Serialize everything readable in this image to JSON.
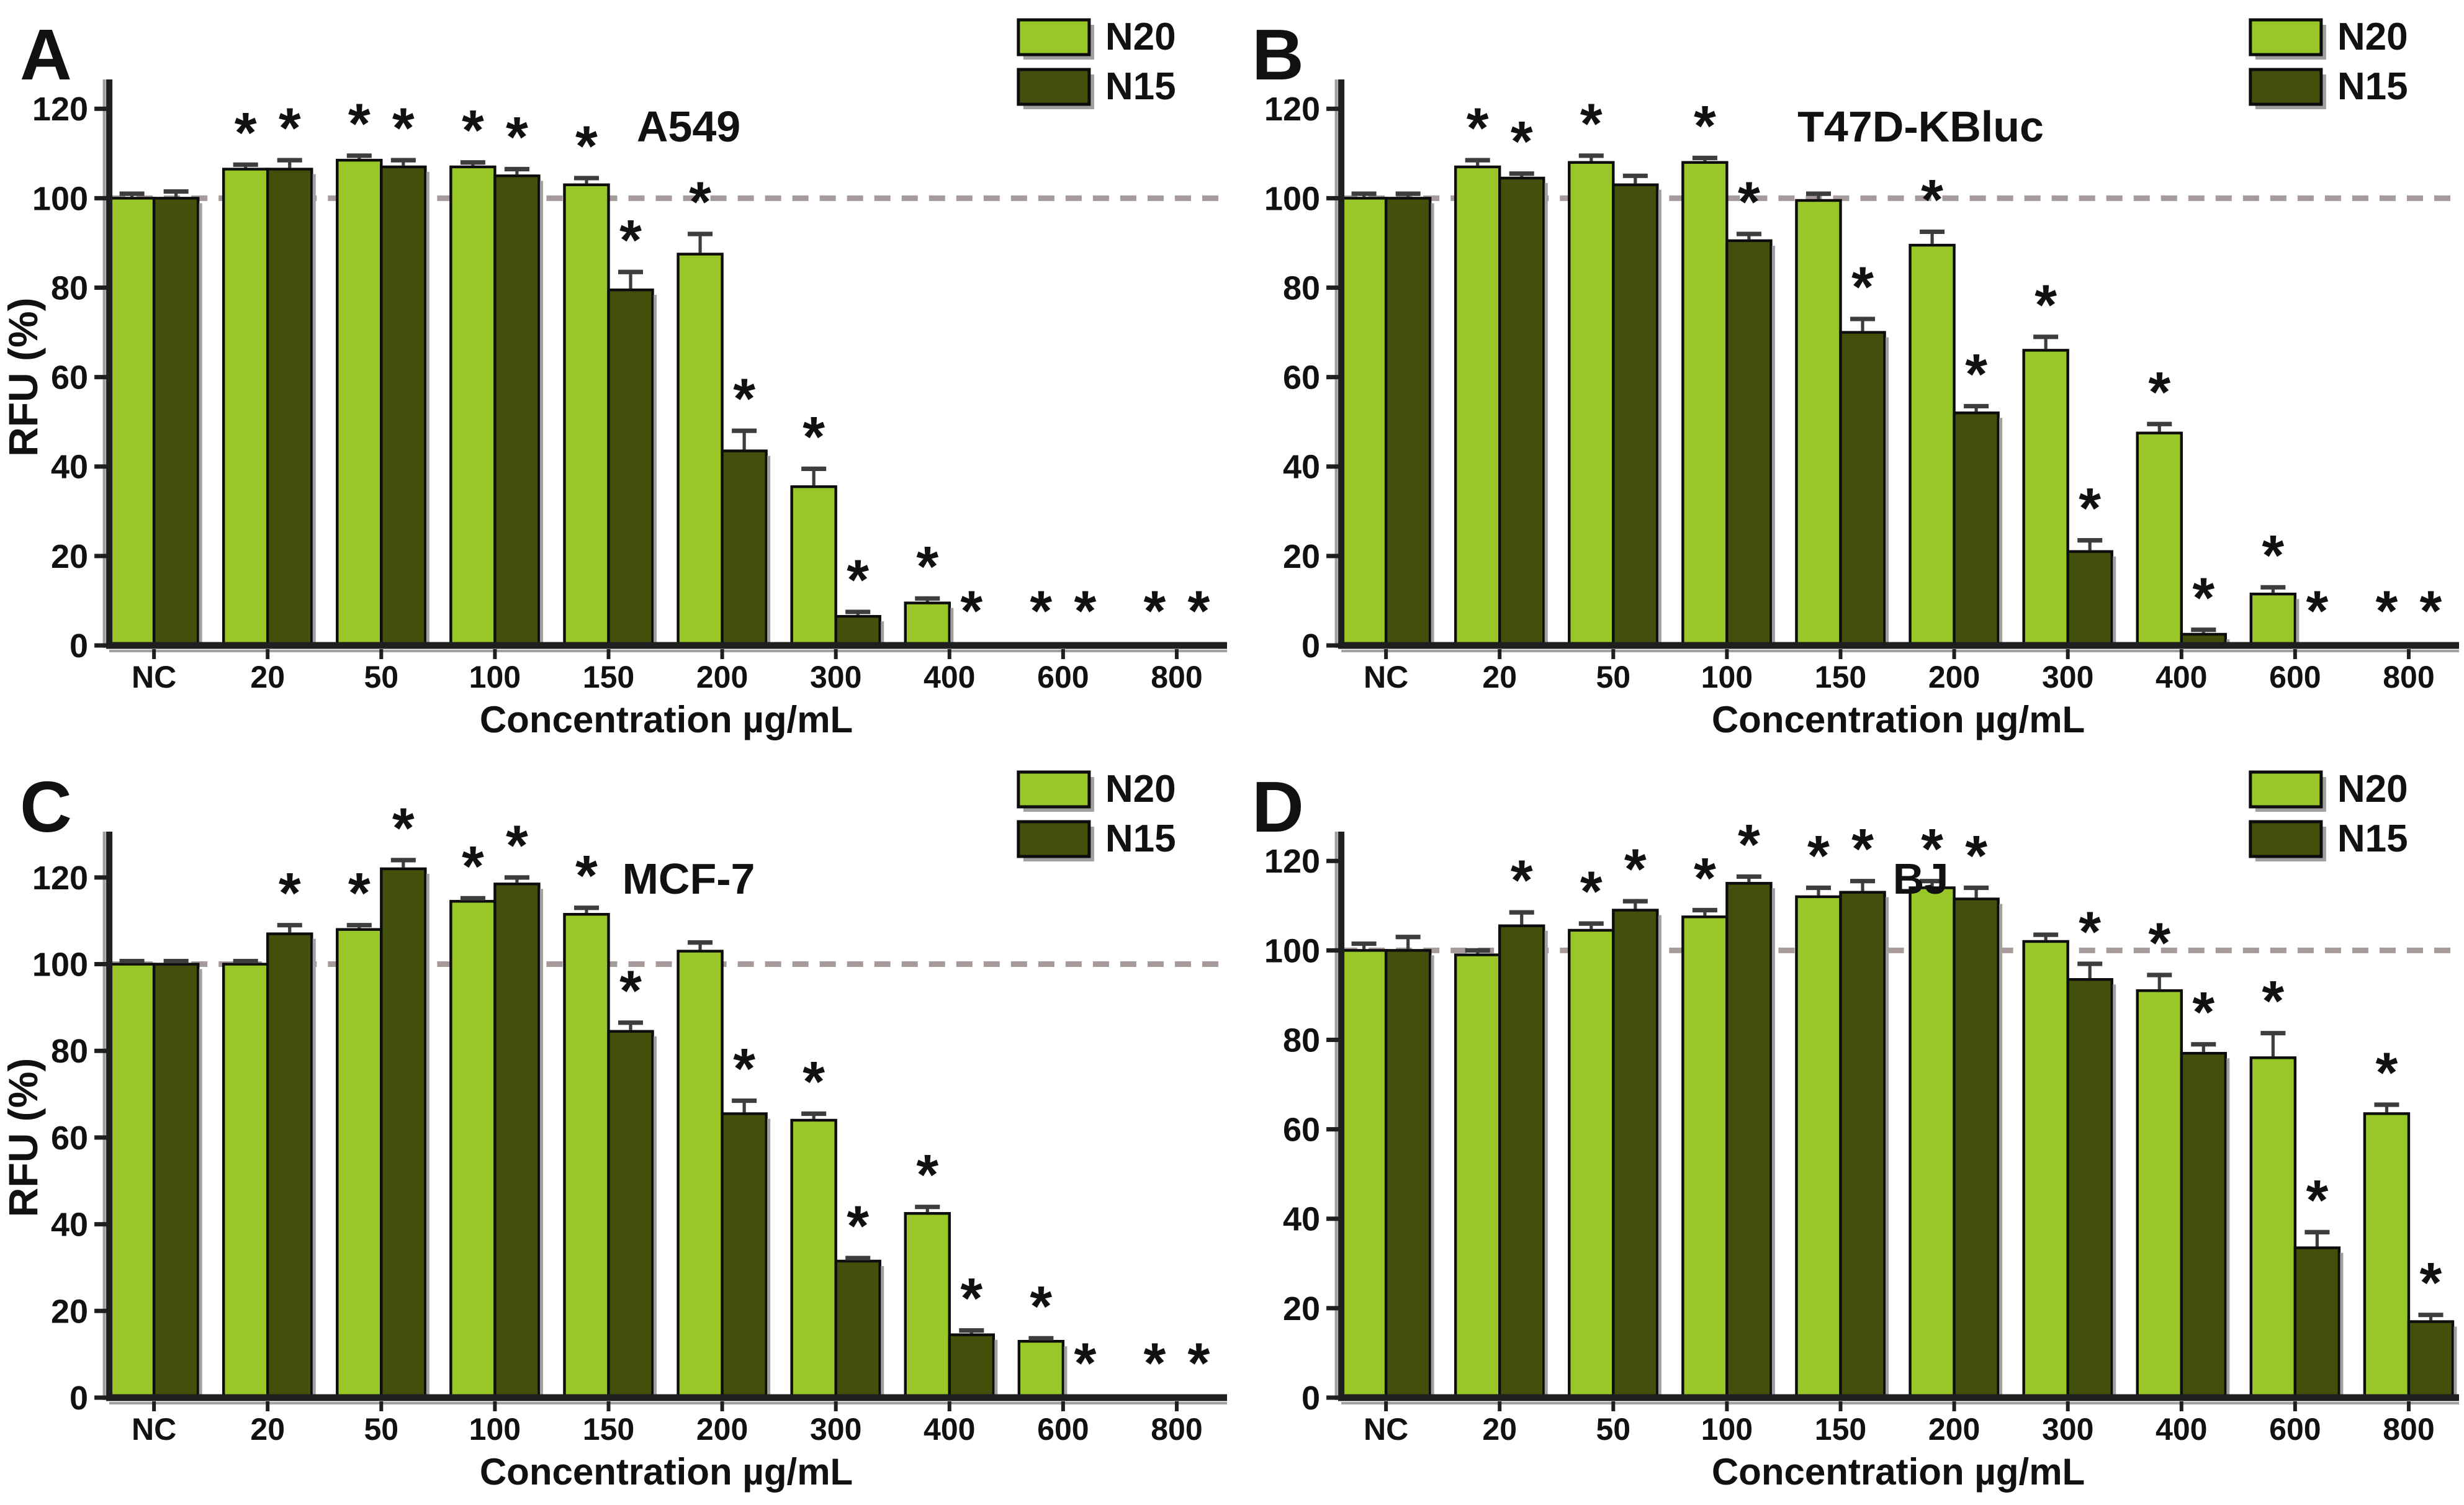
{
  "figure": {
    "x_axis_title": "Concentration µg/mL",
    "y_axis_title": "RFU (%)",
    "categories": [
      "NC",
      "20",
      "50",
      "100",
      "150",
      "200",
      "300",
      "400",
      "600",
      "800"
    ],
    "yticks": [
      0,
      20,
      40,
      60,
      80,
      100,
      120
    ],
    "ylim": [
      0,
      120
    ],
    "ref_line_value": 100,
    "significance_marker": "*",
    "legend": [
      "N20",
      "N15"
    ],
    "colors": {
      "N20": "#98C727",
      "N15": "#42500B",
      "bar_outline": "#0d0d0d",
      "error_bar": "#3d3d3d",
      "ref_line": "#A79A9A",
      "axis": "#1f1f1f",
      "axis_shadow": "#a0a0a0",
      "text": "#111111"
    }
  },
  "chart_data": [
    {
      "type": "bar",
      "panel": "A",
      "title": "A549",
      "show_y_title": true,
      "xlabel": "Concentration µg/mL",
      "ylabel": "RFU (%)",
      "categories": [
        "NC",
        "20",
        "50",
        "100",
        "150",
        "200",
        "300",
        "400",
        "600",
        "800"
      ],
      "series": [
        {
          "name": "N20",
          "values": [
            100,
            106.5,
            108.5,
            107,
            103,
            87.5,
            35.5,
            9.5,
            0,
            0
          ],
          "errors": [
            1,
            1,
            1,
            1,
            1.5,
            4.5,
            4,
            1,
            0,
            0
          ],
          "significant": [
            0,
            1,
            1,
            1,
            1,
            1,
            1,
            1,
            1,
            1
          ]
        },
        {
          "name": "N15",
          "values": [
            100,
            106.5,
            107,
            105,
            79.5,
            43.5,
            6.5,
            0,
            0,
            0
          ],
          "errors": [
            1.5,
            2,
            1.5,
            1.5,
            4,
            4.5,
            1,
            0,
            0,
            0
          ],
          "significant": [
            0,
            1,
            1,
            1,
            1,
            1,
            1,
            1,
            1,
            1
          ]
        }
      ]
    },
    {
      "type": "bar",
      "panel": "B",
      "title": "T47D-KBluc",
      "show_y_title": false,
      "xlabel": "Concentration µg/mL",
      "ylabel": "",
      "categories": [
        "NC",
        "20",
        "50",
        "100",
        "150",
        "200",
        "300",
        "400",
        "600",
        "800"
      ],
      "series": [
        {
          "name": "N20",
          "values": [
            100,
            107,
            108,
            108,
            99.5,
            89.5,
            66,
            47.5,
            11.5,
            0
          ],
          "errors": [
            1,
            1.5,
            1.5,
            1,
            1.5,
            3,
            3,
            2,
            1.5,
            0
          ],
          "significant": [
            0,
            1,
            1,
            1,
            0,
            1,
            1,
            1,
            1,
            1
          ]
        },
        {
          "name": "N15",
          "values": [
            100,
            104.5,
            103,
            90.5,
            70,
            52,
            21,
            2.5,
            0,
            0
          ],
          "errors": [
            1,
            1,
            2,
            1.5,
            3,
            1.5,
            2.5,
            1,
            0,
            0
          ],
          "significant": [
            0,
            1,
            0,
            1,
            1,
            1,
            1,
            1,
            1,
            1
          ]
        }
      ]
    },
    {
      "type": "bar",
      "panel": "C",
      "title": "MCF-7",
      "show_y_title": true,
      "xlabel": "Concentration µg/mL",
      "ylabel": "RFU (%)",
      "categories": [
        "NC",
        "20",
        "50",
        "100",
        "150",
        "200",
        "300",
        "400",
        "600",
        "800"
      ],
      "series": [
        {
          "name": "N20",
          "values": [
            100,
            100,
            108,
            114.5,
            111.5,
            103,
            64,
            42.5,
            13,
            0
          ],
          "errors": [
            0.7,
            0.7,
            1,
            0.7,
            1.5,
            2,
            1.5,
            1.5,
            0.7,
            0
          ],
          "significant": [
            0,
            0,
            1,
            1,
            1,
            0,
            1,
            1,
            1,
            1
          ]
        },
        {
          "name": "N15",
          "values": [
            100,
            107,
            122,
            118.5,
            84.5,
            65.5,
            31.5,
            14.5,
            0,
            0
          ],
          "errors": [
            0.7,
            2,
            2,
            1.5,
            2,
            3,
            0.7,
            1,
            0,
            0
          ],
          "significant": [
            0,
            1,
            1,
            1,
            1,
            1,
            1,
            1,
            1,
            1
          ]
        }
      ]
    },
    {
      "type": "bar",
      "panel": "D",
      "title": "BJ",
      "show_y_title": false,
      "xlabel": "Concentration µg/mL",
      "ylabel": "",
      "categories": [
        "NC",
        "20",
        "50",
        "100",
        "150",
        "200",
        "300",
        "400",
        "600",
        "800"
      ],
      "series": [
        {
          "name": "N20",
          "values": [
            100,
            99,
            104.5,
            107.5,
            112,
            114,
            102,
            91,
            76,
            63.5
          ],
          "errors": [
            1.5,
            1,
            1.5,
            1.5,
            2,
            1.5,
            1.5,
            3.5,
            5.5,
            2
          ],
          "significant": [
            0,
            0,
            1,
            1,
            1,
            1,
            0,
            1,
            1,
            1
          ]
        },
        {
          "name": "N15",
          "values": [
            100,
            105.5,
            109,
            115,
            113,
            111.5,
            93.5,
            77,
            33.5,
            17
          ],
          "errors": [
            3,
            3,
            2,
            1.5,
            2.5,
            2.5,
            3.5,
            2,
            3.5,
            1.5
          ],
          "significant": [
            0,
            1,
            1,
            1,
            1,
            1,
            1,
            1,
            1,
            1
          ]
        }
      ]
    }
  ]
}
